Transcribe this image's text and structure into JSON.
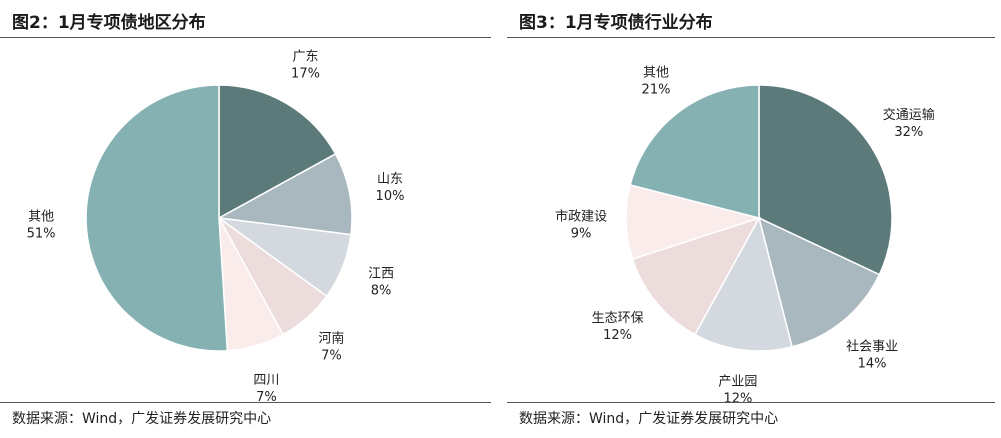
{
  "chart_data": [
    {
      "type": "pie",
      "title": "图2：1月专项债地区分布",
      "source": "数据来源：Wind，广发证券发展研究中心",
      "slices": [
        {
          "name": "广东",
          "value": 17,
          "label": "17%",
          "color": "#5c7a7a"
        },
        {
          "name": "山东",
          "value": 10,
          "label": "10%",
          "color": "#a8b8be"
        },
        {
          "name": "江西",
          "value": 8,
          "label": "8%",
          "color": "#d3d9df"
        },
        {
          "name": "河南",
          "value": 7,
          "label": "7%",
          "color": "#ecdcdc"
        },
        {
          "name": "四川",
          "value": 7,
          "label": "7%",
          "color": "#fbecec"
        },
        {
          "name": "其他",
          "value": 51,
          "label": "51%",
          "color": "#85b1b3"
        }
      ]
    },
    {
      "type": "pie",
      "title": "图3：1月专项债行业分布",
      "source": "数据来源：Wind，广发证券发展研究中心",
      "slices": [
        {
          "name": "交通运输",
          "value": 32,
          "label": "32%",
          "color": "#5c7a7a"
        },
        {
          "name": "社会事业",
          "value": 14,
          "label": "14%",
          "color": "#a8b8be"
        },
        {
          "name": "产业园",
          "value": 12,
          "label": "12%",
          "color": "#d3d9df"
        },
        {
          "name": "生态环保",
          "value": 12,
          "label": "12%",
          "color": "#ecdcdc"
        },
        {
          "name": "市政建设",
          "value": 9,
          "label": "9%",
          "color": "#fbecec"
        },
        {
          "name": "其他",
          "value": 21,
          "label": "21%",
          "color": "#85b1b3"
        }
      ]
    }
  ]
}
